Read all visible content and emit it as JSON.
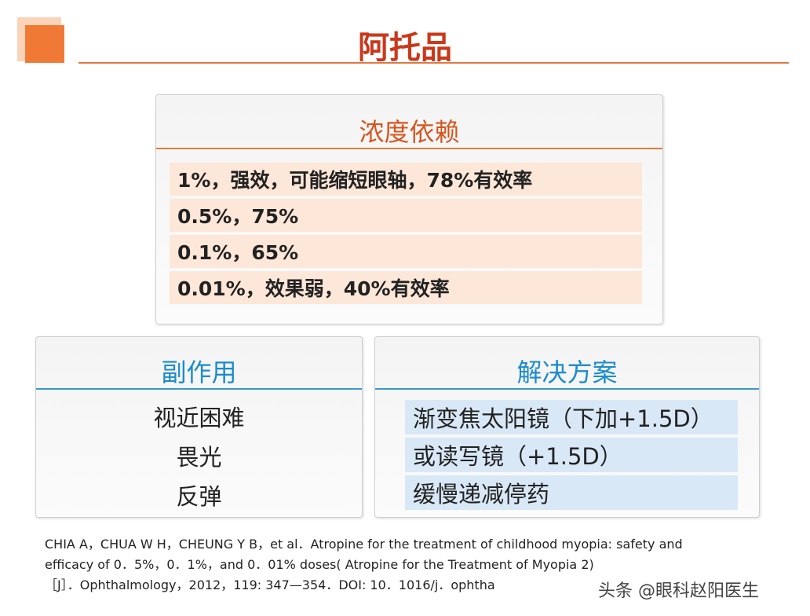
{
  "header": {
    "title": "阿托品"
  },
  "concentration": {
    "heading": "浓度依赖",
    "rows": [
      "1%，强效，可能缩短眼轴，78%有效率",
      "0.5%，75%",
      "0.1%，65%",
      "0.01%，效果弱，40%有效率"
    ]
  },
  "side_effects": {
    "heading": "副作用",
    "items": [
      "视近困难",
      "畏光",
      "反弹"
    ]
  },
  "solutions": {
    "heading": "解决方案",
    "rows": [
      "渐变焦太阳镜（下加+1.5D）",
      "或读写镜（+1.5D）",
      "缓慢递减停药"
    ]
  },
  "citation": {
    "lines": [
      "CHIA A，CHUA W H，CHEUNG Y B，et al．Atropine for the treatment of childhood myopia: safety and",
      "efficacy of 0．5%，0．1%，and 0．01% doses( Atropine for the Treatment of Myopia 2)",
      "［J］．Ophthalmology，2012，119: 347—354．DOI: 10．1016/j．ophtha"
    ]
  },
  "watermark": "头条 @眼科赵阳医生"
}
